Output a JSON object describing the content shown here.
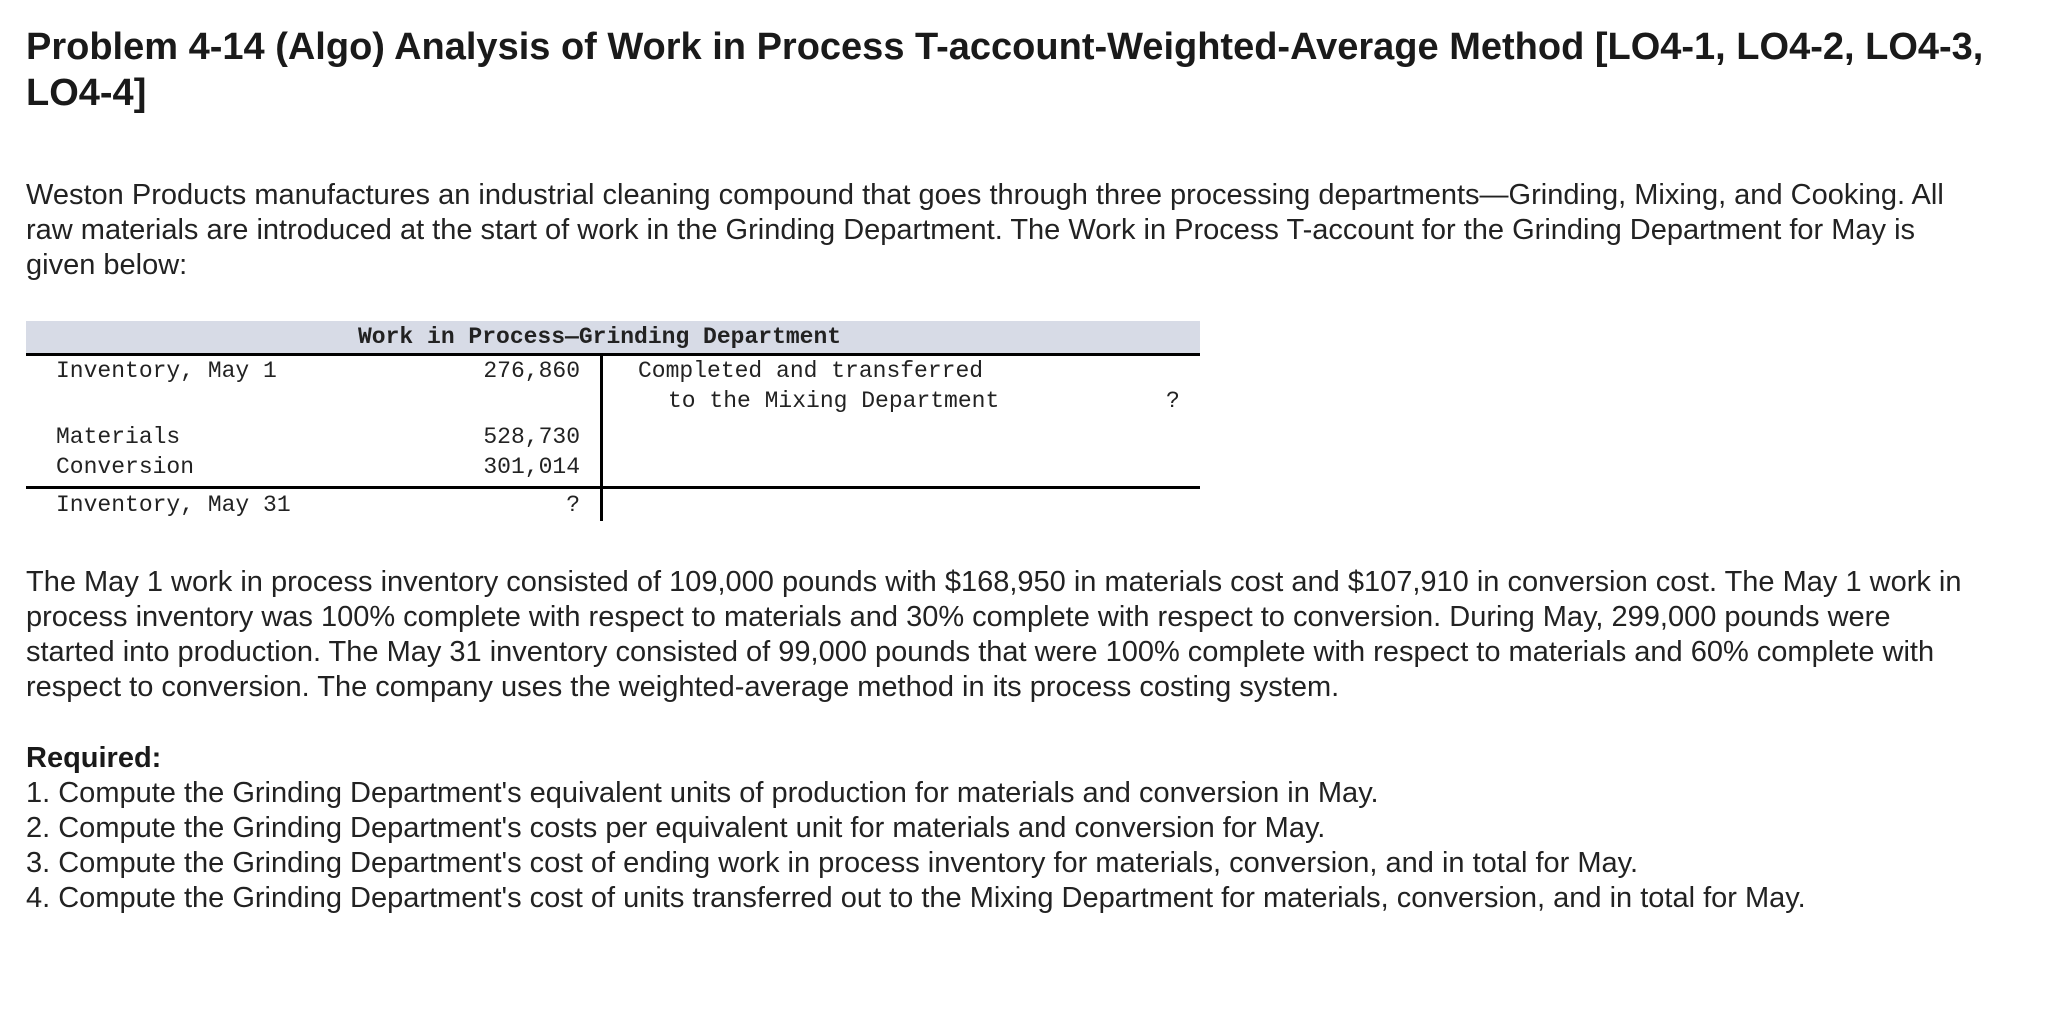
{
  "title": "Problem 4-14 (Algo) Analysis of Work in Process T-account-Weighted-Average Method [LO4-1, LO4-2, LO4-3, LO4-4]",
  "intro": "Weston Products manufactures an industrial cleaning compound that goes through three processing departments—Grinding, Mixing, and Cooking. All raw materials are introduced at the start of work in the Grinding Department. The Work in Process T-account for the Grinding Department for May is given below:",
  "t_account": {
    "header": "Work in Process—Grinding Department",
    "left": [
      {
        "label": "Inventory, May 1",
        "amount": "276,860"
      },
      {
        "label": "Materials",
        "amount": "528,730"
      },
      {
        "label": "Conversion",
        "amount": "301,014"
      }
    ],
    "right": {
      "line1": "Completed and transferred",
      "line2": "to the Mixing Department",
      "amount": "?"
    },
    "ending": {
      "label": "Inventory, May 31",
      "amount": "?"
    }
  },
  "body": "The May 1 work in process inventory consisted of 109,000 pounds with $168,950 in materials cost and $107,910 in conversion cost. The May 1 work in process inventory was 100% complete with respect to materials and 30% complete with respect to conversion. During May, 299,000 pounds were started into production. The May 31 inventory consisted of 99,000 pounds that were 100% complete with respect to materials and 60% complete with respect to conversion. The company uses the weighted-average method in its process costing system.",
  "required": {
    "heading": "Required:",
    "items": [
      "1. Compute the Grinding Department's equivalent units of production for materials and conversion in May.",
      "2. Compute the Grinding Department's costs per equivalent unit for materials and conversion for May.",
      "3. Compute the Grinding Department's cost of ending work in process inventory for materials, conversion, and in total for May.",
      "4. Compute the Grinding Department's cost of units transferred out to the Mixing Department for materials, conversion, and in total for May."
    ]
  }
}
